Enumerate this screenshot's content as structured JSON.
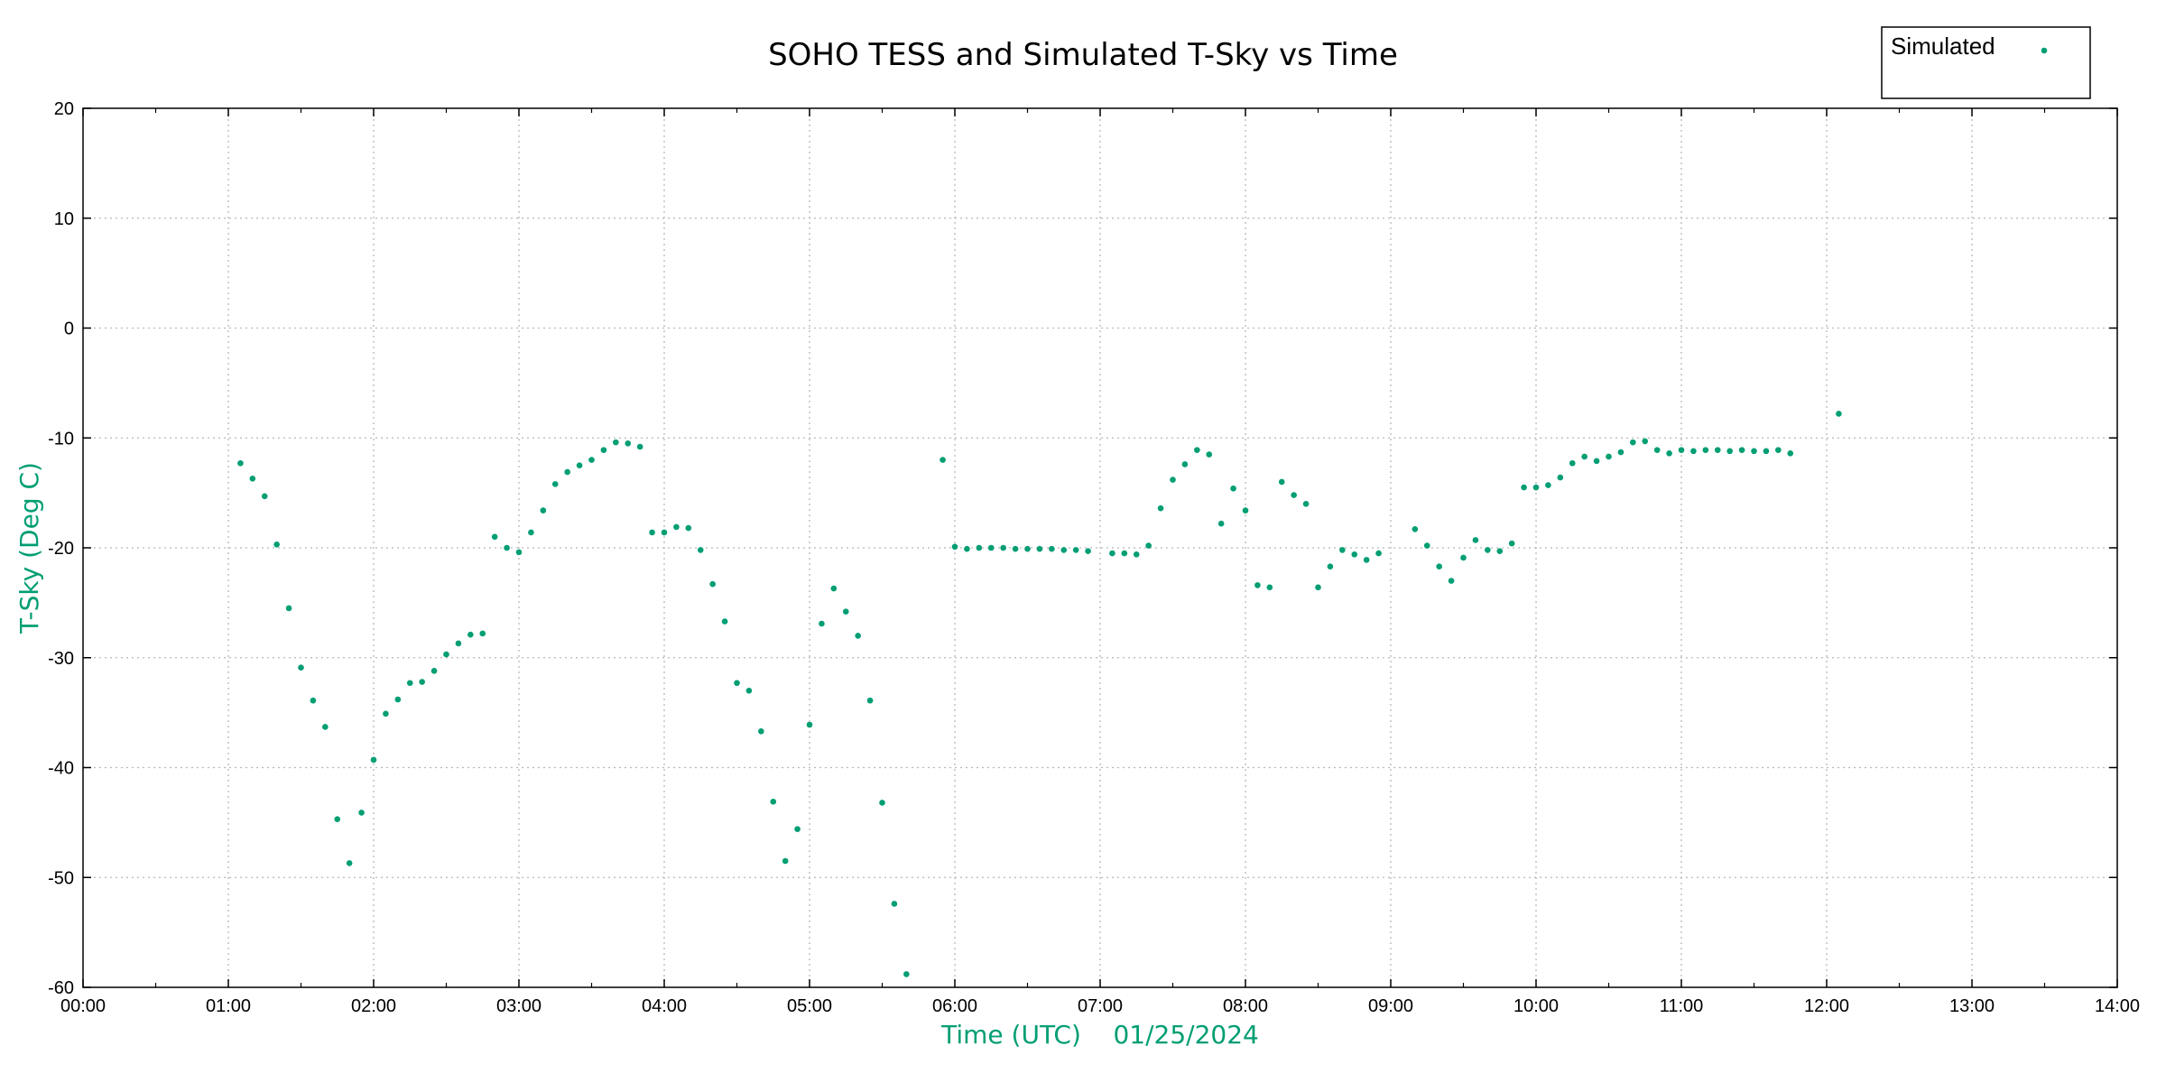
{
  "colors": {
    "series": "#009e73",
    "axis": "#000000",
    "grid": "#b8b8b8"
  },
  "chart_data": {
    "type": "scatter",
    "title": "SOHO TESS and Simulated T-Sky vs Time",
    "xlabel": "Time (UTC)    01/25/2024",
    "ylabel": "T-Sky (Deg C)",
    "xlim": [
      "00:00",
      "14:00"
    ],
    "ylim": [
      -60,
      20
    ],
    "x_ticks": [
      "00:00",
      "01:00",
      "02:00",
      "03:00",
      "04:00",
      "05:00",
      "06:00",
      "07:00",
      "08:00",
      "09:00",
      "10:00",
      "11:00",
      "12:00",
      "13:00",
      "14:00"
    ],
    "y_ticks": [
      "20",
      "10",
      "0",
      "-10",
      "-20",
      "-30",
      "-40",
      "-50",
      "-60"
    ],
    "grid": true,
    "legend_position": "top-right",
    "series": [
      {
        "name": "Simulated",
        "x": [
          "01:05",
          "01:10",
          "01:15",
          "01:20",
          "01:25",
          "01:30",
          "01:35",
          "01:40",
          "01:45",
          "01:50",
          "01:55",
          "02:00",
          "02:05",
          "02:10",
          "02:15",
          "02:20",
          "02:25",
          "02:30",
          "02:35",
          "02:40",
          "02:45",
          "02:50",
          "02:55",
          "03:00",
          "03:05",
          "03:10",
          "03:15",
          "03:20",
          "03:25",
          "03:30",
          "03:35",
          "03:40",
          "03:45",
          "03:50",
          "03:55",
          "04:00",
          "04:05",
          "04:10",
          "04:15",
          "04:20",
          "04:25",
          "04:30",
          "04:35",
          "04:40",
          "04:45",
          "04:50",
          "04:55",
          "05:00",
          "05:05",
          "05:10",
          "05:15",
          "05:20",
          "05:25",
          "05:30",
          "05:35",
          "05:40",
          "05:55",
          "06:00",
          "06:05",
          "06:10",
          "06:15",
          "06:20",
          "06:25",
          "06:30",
          "06:35",
          "06:40",
          "06:45",
          "06:50",
          "06:55",
          "07:05",
          "07:10",
          "07:15",
          "07:20",
          "07:25",
          "07:30",
          "07:35",
          "07:40",
          "07:45",
          "07:50",
          "07:55",
          "08:00",
          "08:05",
          "08:10",
          "08:15",
          "08:20",
          "08:25",
          "08:30",
          "08:35",
          "08:40",
          "08:45",
          "08:50",
          "08:55",
          "09:10",
          "09:15",
          "09:20",
          "09:25",
          "09:30",
          "09:35",
          "09:40",
          "09:45",
          "09:50",
          "09:55",
          "10:00",
          "10:05",
          "10:10",
          "10:15",
          "10:20",
          "10:25",
          "10:30",
          "10:35",
          "10:40",
          "10:45",
          "10:50",
          "10:55",
          "11:00",
          "11:05",
          "11:10",
          "11:15",
          "11:20",
          "11:25",
          "11:30",
          "11:35",
          "11:40",
          "11:45",
          "12:05"
        ],
        "y": [
          -12.3,
          -13.7,
          -15.3,
          -19.7,
          -25.5,
          -30.9,
          -33.9,
          -36.3,
          -44.7,
          -48.7,
          -44.1,
          -39.3,
          -35.1,
          -33.8,
          -32.3,
          -32.2,
          -31.2,
          -29.7,
          -28.7,
          -27.9,
          -27.8,
          -19.0,
          -20.0,
          -20.4,
          -18.6,
          -16.6,
          -14.2,
          -13.1,
          -12.5,
          -12.0,
          -11.1,
          -10.4,
          -10.5,
          -10.8,
          -18.6,
          -18.6,
          -18.1,
          -18.2,
          -20.2,
          -23.3,
          -26.7,
          -32.3,
          -33.0,
          -36.7,
          -43.1,
          -48.5,
          -45.6,
          -36.1,
          -26.9,
          -23.7,
          -25.8,
          -28.0,
          -33.9,
          -43.2,
          -52.4,
          -58.8,
          -12.0,
          -19.9,
          -20.1,
          -20.0,
          -20.0,
          -20.0,
          -20.1,
          -20.1,
          -20.1,
          -20.1,
          -20.2,
          -20.2,
          -20.3,
          -20.5,
          -20.5,
          -20.6,
          -19.8,
          -16.4,
          -13.8,
          -12.4,
          -11.1,
          -11.5,
          -17.8,
          -14.6,
          -16.6,
          -23.4,
          -23.6,
          -14.0,
          -15.2,
          -16.0,
          -23.6,
          -21.7,
          -20.2,
          -20.6,
          -21.1,
          -20.5,
          -18.3,
          -19.8,
          -21.7,
          -23.0,
          -20.9,
          -19.3,
          -20.2,
          -20.3,
          -19.6,
          -14.5,
          -14.5,
          -14.3,
          -13.6,
          -12.3,
          -11.7,
          -12.1,
          -11.7,
          -11.3,
          -10.4,
          -10.3,
          -11.1,
          -11.4,
          -11.1,
          -11.2,
          -11.1,
          -11.1,
          -11.2,
          -11.1,
          -11.2,
          -11.2,
          -11.1,
          -11.4,
          -7.8
        ]
      }
    ]
  }
}
